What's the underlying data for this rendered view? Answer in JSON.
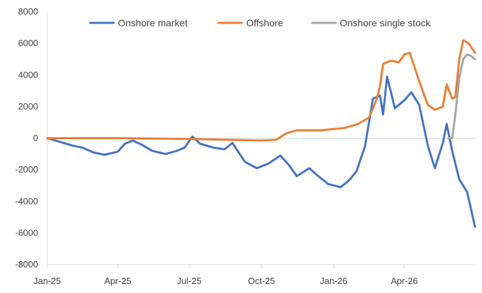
{
  "chart_data": {
    "type": "line",
    "title": "",
    "xlabel": "",
    "ylabel": "",
    "ylim": [
      -8000,
      8000
    ],
    "yticks": [
      8000,
      6000,
      4000,
      2000,
      0,
      -2000,
      -4000,
      -6000,
      -8000
    ],
    "xlim": [
      "2025-01",
      "2026-07"
    ],
    "xticks": [
      {
        "date": "2025-01",
        "label": "Jan-25"
      },
      {
        "date": "2025-04",
        "label": "Apr-25"
      },
      {
        "date": "2025-07",
        "label": "Jul-25"
      },
      {
        "date": "2025-10",
        "label": "Oct-25"
      },
      {
        "date": "2026-01",
        "label": "Jan-26"
      },
      {
        "date": "2026-04",
        "label": "Apr-26"
      }
    ],
    "grid": false,
    "legend_position": "top",
    "series": [
      {
        "name": "Onshore market",
        "color": "#4472C4",
        "points": [
          [
            "2025-01-01",
            0
          ],
          [
            "2025-01-15",
            -200
          ],
          [
            "2025-02-01",
            -450
          ],
          [
            "2025-02-15",
            -600
          ],
          [
            "2025-03-01",
            -900
          ],
          [
            "2025-03-15",
            -1050
          ],
          [
            "2025-04-01",
            -850
          ],
          [
            "2025-04-10",
            -350
          ],
          [
            "2025-04-20",
            -150
          ],
          [
            "2025-05-01",
            -400
          ],
          [
            "2025-05-15",
            -800
          ],
          [
            "2025-06-01",
            -1000
          ],
          [
            "2025-06-15",
            -800
          ],
          [
            "2025-06-25",
            -600
          ],
          [
            "2025-07-05",
            100
          ],
          [
            "2025-07-15",
            -350
          ],
          [
            "2025-08-01",
            -600
          ],
          [
            "2025-08-15",
            -700
          ],
          [
            "2025-08-25",
            -300
          ],
          [
            "2025-09-10",
            -1500
          ],
          [
            "2025-09-25",
            -1900
          ],
          [
            "2025-10-10",
            -1600
          ],
          [
            "2025-10-25",
            -1100
          ],
          [
            "2025-11-05",
            -1700
          ],
          [
            "2025-11-15",
            -2400
          ],
          [
            "2025-12-01",
            -1900
          ],
          [
            "2025-12-10",
            -2300
          ],
          [
            "2025-12-25",
            -2900
          ],
          [
            "2026-01-10",
            -3100
          ],
          [
            "2026-01-20",
            -2700
          ],
          [
            "2026-01-30",
            -2100
          ],
          [
            "2026-02-10",
            -500
          ],
          [
            "2026-02-20",
            2500
          ],
          [
            "2026-03-01",
            2700
          ],
          [
            "2026-03-05",
            1500
          ],
          [
            "2026-03-10",
            3900
          ],
          [
            "2026-03-20",
            1900
          ],
          [
            "2026-04-01",
            2400
          ],
          [
            "2026-04-10",
            2900
          ],
          [
            "2026-04-20",
            2100
          ],
          [
            "2026-05-01",
            -500
          ],
          [
            "2026-05-10",
            -1900
          ],
          [
            "2026-05-20",
            -300
          ],
          [
            "2026-05-25",
            900
          ],
          [
            "2026-06-01",
            -800
          ],
          [
            "2026-06-10",
            -2600
          ],
          [
            "2026-06-20",
            -3400
          ],
          [
            "2026-06-30",
            -5600
          ]
        ]
      },
      {
        "name": "Offshore",
        "color": "#ED7D31",
        "points": [
          [
            "2025-01-01",
            0
          ],
          [
            "2025-04-01",
            0
          ],
          [
            "2025-07-01",
            -50
          ],
          [
            "2025-10-01",
            -150
          ],
          [
            "2025-10-20",
            -100
          ],
          [
            "2025-11-01",
            300
          ],
          [
            "2025-11-15",
            500
          ],
          [
            "2025-12-15",
            500
          ],
          [
            "2026-01-15",
            650
          ],
          [
            "2026-02-01",
            900
          ],
          [
            "2026-02-15",
            1300
          ],
          [
            "2026-02-25",
            2500
          ],
          [
            "2026-03-01",
            3300
          ],
          [
            "2026-03-05",
            4700
          ],
          [
            "2026-03-15",
            4900
          ],
          [
            "2026-03-25",
            4800
          ],
          [
            "2026-04-01",
            5300
          ],
          [
            "2026-04-08",
            5400
          ],
          [
            "2026-04-20",
            3600
          ],
          [
            "2026-05-01",
            2100
          ],
          [
            "2026-05-10",
            1800
          ],
          [
            "2026-05-20",
            2000
          ],
          [
            "2026-05-25",
            3400
          ],
          [
            "2026-06-01",
            2500
          ],
          [
            "2026-06-05",
            2600
          ],
          [
            "2026-06-10",
            5000
          ],
          [
            "2026-06-15",
            6200
          ],
          [
            "2026-06-22",
            6000
          ],
          [
            "2026-06-30",
            5400
          ]
        ]
      },
      {
        "name": "Onshore single stock",
        "color": "#A5A5A5",
        "points": [
          [
            "2026-05-27",
            0
          ],
          [
            "2026-06-01",
            0
          ],
          [
            "2026-06-05",
            1500
          ],
          [
            "2026-06-10",
            3800
          ],
          [
            "2026-06-15",
            5000
          ],
          [
            "2026-06-20",
            5300
          ],
          [
            "2026-06-25",
            5200
          ],
          [
            "2026-06-30",
            5000
          ]
        ]
      }
    ]
  }
}
